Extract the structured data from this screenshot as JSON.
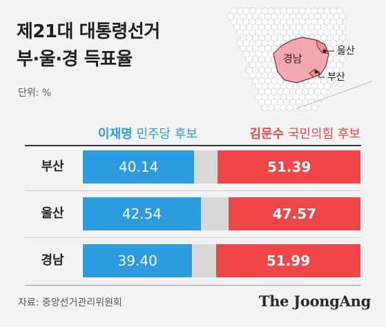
{
  "title_line1": "제21대 대통령선거",
  "title_line2": "부·울·경 득표율",
  "unit_label": "단위: %",
  "map_labels": {
    "gyeongnam": "경남",
    "ulsan": "울산",
    "busan": "부산"
  },
  "legend": {
    "left_name": "이재명",
    "left_party": "민주당 후보",
    "right_name": "김문수",
    "right_party": "국민의힘 후보"
  },
  "colors": {
    "lee": "#2c9be0",
    "kim": "#f04648",
    "track": "#d9d9d9",
    "map_fill": "#f2a9ad"
  },
  "source": "자료: 중앙선거관리위원회",
  "brand": "The JoongAng",
  "chart_data": {
    "type": "bar",
    "orientation": "horizontal",
    "stacked": false,
    "categories": [
      "부산",
      "울산",
      "경남"
    ],
    "series": [
      {
        "name": "이재명 민주당 후보",
        "values": [
          40.14,
          42.54,
          39.4
        ],
        "labels": [
          "40.14",
          "42.54",
          "39.40"
        ]
      },
      {
        "name": "김문수 국민의힘 후보",
        "values": [
          51.39,
          47.57,
          51.99
        ],
        "labels": [
          "51.39",
          "47.57",
          "51.99"
        ]
      }
    ],
    "xlim": [
      0,
      100
    ],
    "title": "제21대 대통령선거 부·울·경 득표율",
    "unit": "%"
  }
}
